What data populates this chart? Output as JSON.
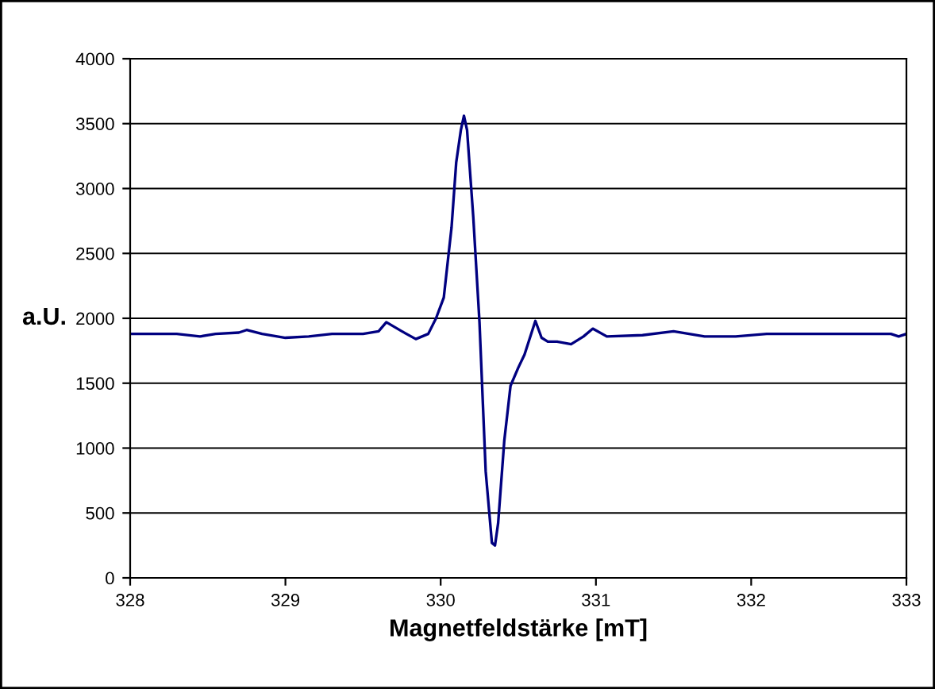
{
  "chart_data": {
    "type": "line",
    "xlabel": "Magnetfeldstärke [mT]",
    "ylabel": "a.U.",
    "series": [
      {
        "color": "#000080",
        "x": [
          328.0,
          328.3,
          328.45,
          328.55,
          328.7,
          328.75,
          328.85,
          329.0,
          329.15,
          329.3,
          329.5,
          329.6,
          329.65,
          329.75,
          329.84,
          329.92,
          329.97,
          330.02,
          330.07,
          330.1,
          330.13,
          330.15,
          330.17,
          330.21,
          330.25,
          330.29,
          330.33,
          330.35,
          330.37,
          330.41,
          330.45,
          330.5,
          330.54,
          330.61,
          330.65,
          330.69,
          330.75,
          330.84,
          330.92,
          330.98,
          331.07,
          331.3,
          331.5,
          331.7,
          331.9,
          332.1,
          332.5,
          332.9,
          332.95,
          333.0
        ],
        "values": [
          1880,
          1880,
          1860,
          1880,
          1890,
          1910,
          1880,
          1850,
          1860,
          1880,
          1880,
          1900,
          1970,
          1900,
          1840,
          1880,
          2000,
          2160,
          2700,
          3200,
          3450,
          3560,
          3450,
          2780,
          1970,
          820,
          270,
          250,
          420,
          1060,
          1480,
          1620,
          1720,
          1980,
          1850,
          1820,
          1820,
          1800,
          1860,
          1920,
          1860,
          1870,
          1900,
          1860,
          1860,
          1880,
          1880,
          1880,
          1860,
          1880
        ]
      }
    ],
    "xlim": [
      328,
      333
    ],
    "xticks": [
      328,
      329,
      330,
      331,
      332,
      333
    ],
    "ylim": [
      0,
      4000
    ],
    "yticks": [
      0,
      500,
      1000,
      1500,
      2000,
      2500,
      3000,
      3500,
      4000
    ],
    "grid": "y",
    "legend": false,
    "marker": "none",
    "line_style": "solid"
  }
}
